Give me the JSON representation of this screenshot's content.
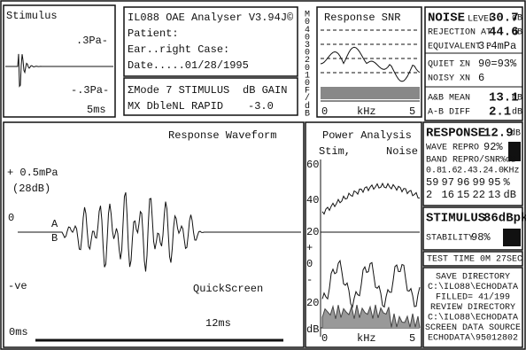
{
  "stimulus": {
    "title": "Stimulus",
    "top": ".3Pa-",
    "bottom": "-.3Pa-",
    "time": "5ms"
  },
  "info": {
    "lines": [
      "IL088 OAE Analyser V3.94J©",
      "Patient:",
      "Ear..right  Case:",
      "Date.....01/28/1995"
    ],
    "mode": "ΣMode 7 STIMULUS",
    "gain_label": "dB GAIN",
    "noise_mode": "MX DbleNL RAPID",
    "gain": "-3.0"
  },
  "scale": [
    "M",
    "0",
    "4",
    "0",
    "3",
    "0",
    "2",
    "0",
    "1",
    "0",
    "F",
    "/",
    "d",
    "B"
  ],
  "snr": {
    "title": "Response SNR",
    "x0": "0",
    "xunit": "kHz",
    "x1": "5"
  },
  "noise": {
    "rows": [
      {
        "label": "NOISE",
        "sub": "LEVEL",
        "value": "30.7",
        "unit": "dB"
      },
      {
        "label": "REJECTION AT",
        "value": "44.6",
        "unit": "dB"
      },
      {
        "label": "EQUIVALENT P",
        "value": "3.4mPa"
      },
      {
        "label": "QUIET ΣN",
        "value": "90=93%"
      },
      {
        "label": "NOISY XN",
        "value": "6"
      },
      {
        "label": "A&B MEAN",
        "value": "13.1",
        "unit": "dB"
      },
      {
        "label": "A-B DIFF",
        "value": "2.1",
        "unit": "dB"
      }
    ]
  },
  "waveform": {
    "title": "Response Waveform",
    "top": "+ 0.5mPa",
    "db": "(28dB)",
    "zero": "0",
    "a": "A",
    "b": "B",
    "neg": "-ve",
    "mode": "QuickScreen",
    "end": "12ms",
    "start": "0ms"
  },
  "power": {
    "title": "Power Analysis",
    "stim": "Stim,",
    "noise": "Noise",
    "labels": [
      "60",
      "40",
      "20",
      "+",
      "0",
      "-",
      "20",
      "dB"
    ],
    "x0": "0",
    "xunit": "kHz",
    "x1": "5"
  },
  "response": {
    "title": "RESPONSE",
    "value": "12.9",
    "unit": "dB",
    "repro_label": "WAVE REPRO",
    "repro": "92%",
    "band_label": "BAND REPRO/SNR%dB",
    "bands": [
      "0.8",
      "1.6",
      "2.4",
      "3.2",
      "4.0",
      "KHz"
    ],
    "repro_row": [
      "59",
      "97",
      "96",
      "99",
      "95",
      "%"
    ],
    "snr_row": [
      "2",
      "16",
      "15",
      "22",
      "13",
      "dB"
    ]
  },
  "stim_panel": {
    "title": "STIMULUS",
    "value": "86dBpk",
    "stability_label": "STABILITY",
    "stability": "98%"
  },
  "test_time": "TEST TIME  0M 27SEC",
  "save": [
    "SAVE DIRECTORY",
    "C:\\ILO88\\ECHODATA",
    "FILLED= 41/199",
    "REVIEW DIRECTORY",
    "C:\\ILO88\\ECHODATA",
    "SCREEN DATA SOURCE",
    "ECHODATA\\95012802"
  ]
}
